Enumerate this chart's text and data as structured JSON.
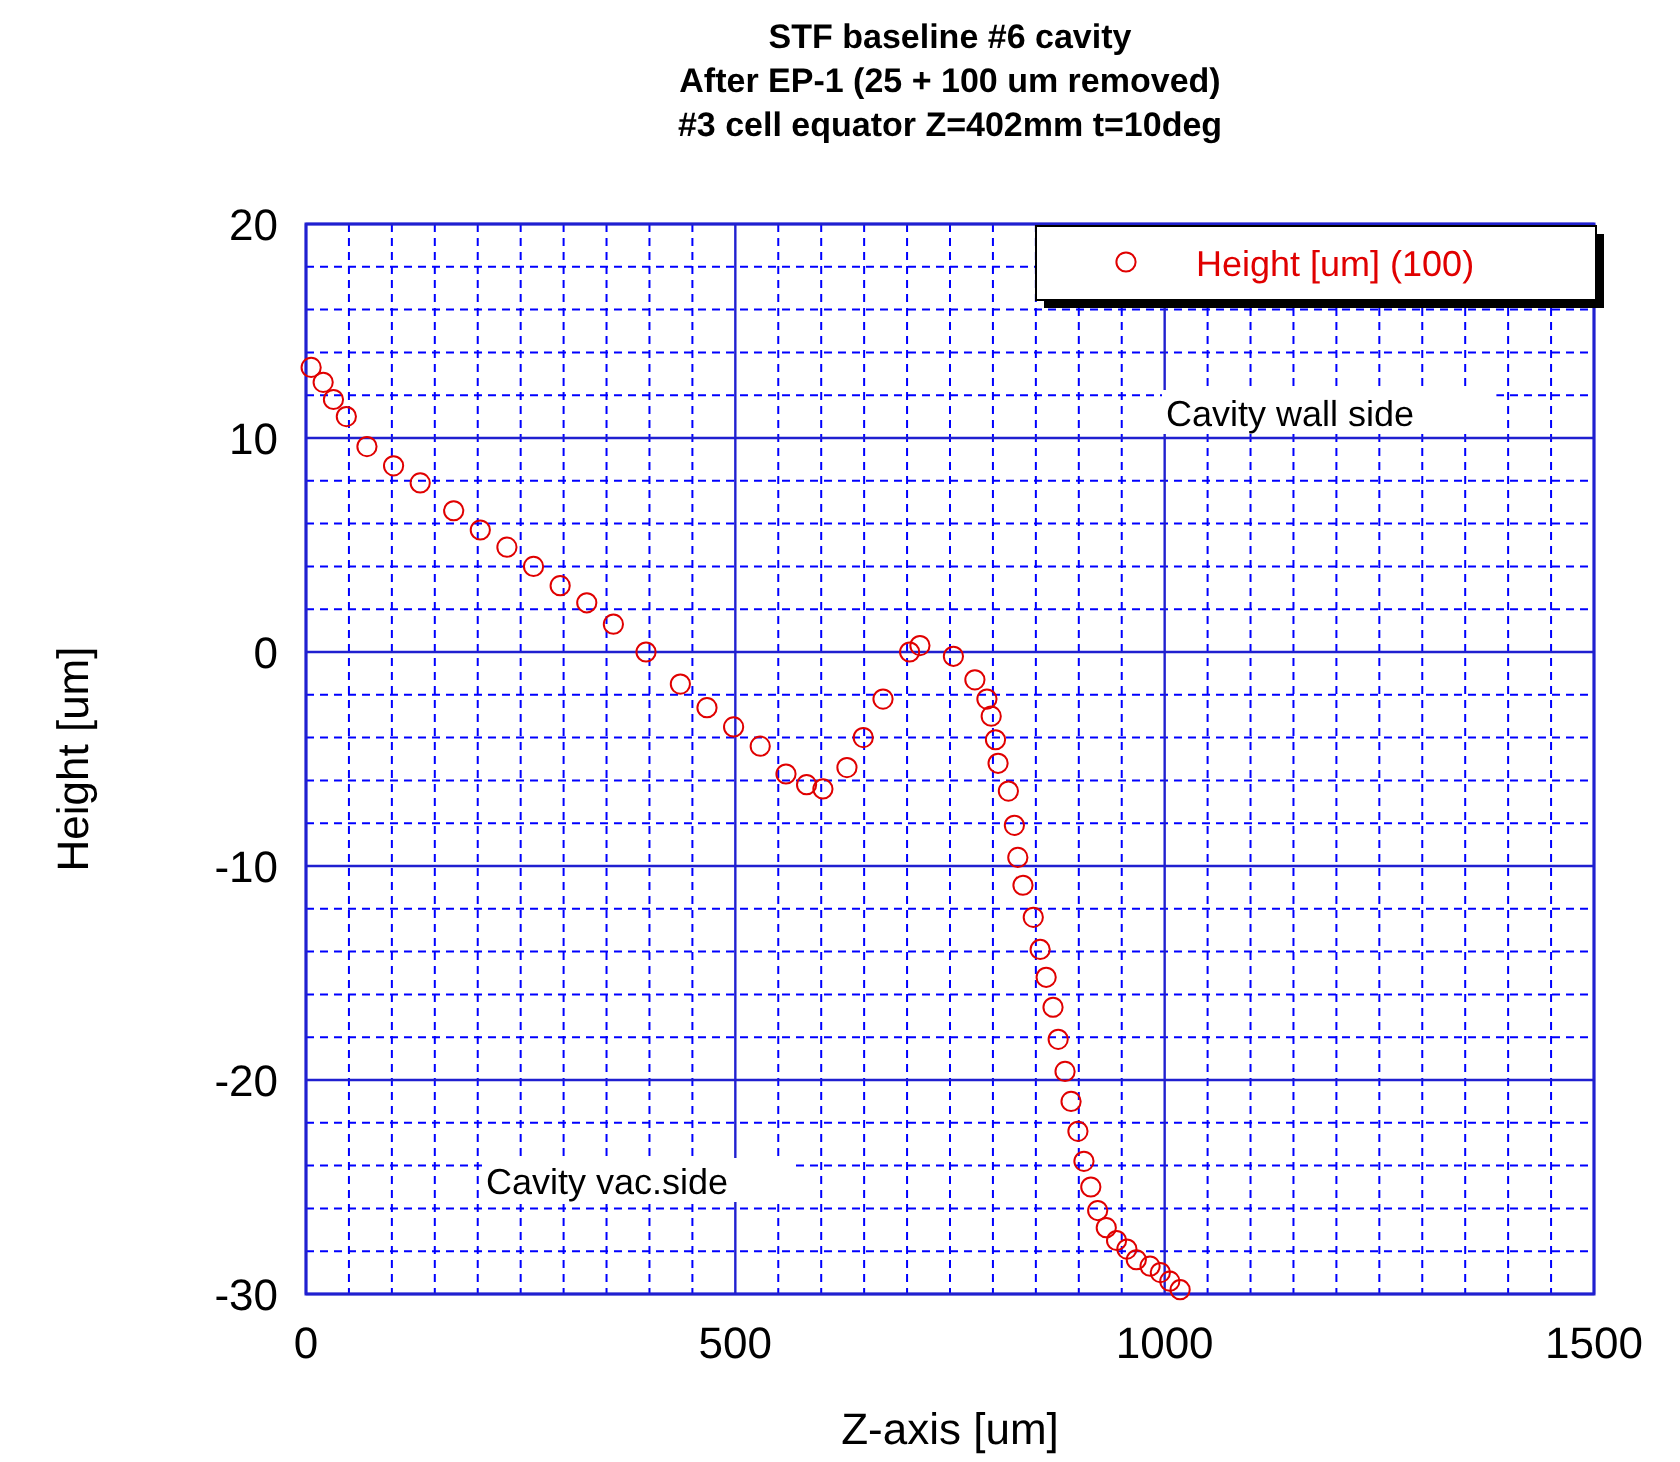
{
  "chart_data": {
    "type": "scatter",
    "title": "STF baseline #6 cavity\nAfter EP-1 (25 + 100 um removed)\n#3 cell equator Z=402mm t=10deg",
    "xlabel": "Z-axis [um]",
    "ylabel": "Height [um]",
    "annotations": [
      "Cavity wall side",
      "Cavity vac.side"
    ],
    "xlim": [
      0,
      1500
    ],
    "xticks": [
      0,
      {
        "value": 50,
        "label": null
      },
      {
        "value": 100,
        "label": null
      },
      {
        "value": 150,
        "label": null
      },
      {
        "value": 200,
        "label": null
      },
      {
        "value": 250,
        "label": null
      },
      {
        "value": 300,
        "label": null
      },
      {
        "value": 350,
        "label": null
      },
      {
        "value": 400,
        "label": null
      },
      {
        "value": 450,
        "label": null
      },
      500,
      {
        "value": 550,
        "label": null
      },
      {
        "value": 600,
        "label": null
      },
      {
        "value": 650,
        "label": null
      },
      {
        "value": 700,
        "label": null
      },
      {
        "value": 750,
        "label": null
      },
      {
        "value": 800,
        "label": null
      },
      {
        "value": 850,
        "label": null
      },
      {
        "value": 900,
        "label": null
      },
      {
        "value": 950,
        "label": null
      },
      1000,
      {
        "value": 1050,
        "label": null
      },
      {
        "value": 1100,
        "label": null
      },
      {
        "value": 1150,
        "label": null
      },
      {
        "value": 1200,
        "label": null
      },
      {
        "value": 1250,
        "label": null
      },
      {
        "value": 1300,
        "label": null
      },
      {
        "value": 1350,
        "label": null
      },
      {
        "value": 1400,
        "label": null
      },
      {
        "value": 1450,
        "label": null
      },
      1500
    ],
    "ylim": [
      -30,
      20
    ],
    "yticks": [
      -30,
      {
        "value": -28,
        "label": null
      },
      {
        "value": -26,
        "label": null
      },
      {
        "value": -24,
        "label": null
      },
      {
        "value": -22,
        "label": null
      },
      -20,
      {
        "value": -18,
        "label": null
      },
      {
        "value": -16,
        "label": null
      },
      {
        "value": -14,
        "label": null
      },
      {
        "value": -12,
        "label": null
      },
      -10,
      {
        "value": -8,
        "label": null
      },
      {
        "value": -6,
        "label": null
      },
      {
        "value": -4,
        "label": null
      },
      {
        "value": -2,
        "label": null
      },
      0,
      {
        "value": 2,
        "label": null
      },
      {
        "value": 4,
        "label": null
      },
      {
        "value": 6,
        "label": null
      },
      {
        "value": 8,
        "label": null
      },
      10,
      {
        "value": 12,
        "label": null
      },
      {
        "value": 14,
        "label": null
      },
      {
        "value": 16,
        "label": null
      },
      {
        "value": 18,
        "label": null
      },
      20
    ],
    "grid": true,
    "legend": "top right",
    "marker": "circle",
    "series": [
      {
        "name": "Height [um] (100)",
        "color": "#e00000",
        "x": [
          6,
          20,
          32,
          47,
          71,
          102,
          133,
          172,
          203,
          234,
          265,
          296,
          327,
          358,
          396,
          436,
          467,
          498,
          529,
          559,
          583,
          602,
          630,
          649,
          672,
          703,
          715,
          754,
          779,
          793,
          798,
          803,
          806,
          818,
          825,
          829,
          835,
          847,
          855,
          862,
          870,
          876,
          884,
          891,
          899,
          906,
          914,
          922,
          932,
          944,
          956,
          967,
          983,
          995,
          1006,
          1018
        ],
        "values": [
          13.3,
          12.6,
          11.8,
          11.0,
          9.6,
          8.7,
          7.9,
          6.6,
          5.7,
          4.9,
          4.0,
          3.1,
          2.3,
          1.3,
          0,
          -1.5,
          -2.6,
          -3.5,
          -4.4,
          -5.7,
          -6.2,
          -6.4,
          -5.4,
          -4.0,
          -2.2,
          0,
          0.3,
          -0.2,
          -1.3,
          -2.2,
          -3.0,
          -4.1,
          -5.2,
          -6.5,
          -8.1,
          -9.6,
          -10.9,
          -12.4,
          -13.9,
          -15.2,
          -16.6,
          -18.1,
          -19.6,
          -21.0,
          -22.4,
          -23.8,
          -25.0,
          -26.1,
          -26.9,
          -27.5,
          -27.9,
          -28.4,
          -28.7,
          -29.0,
          -29.4,
          -29.8
        ]
      }
    ]
  }
}
